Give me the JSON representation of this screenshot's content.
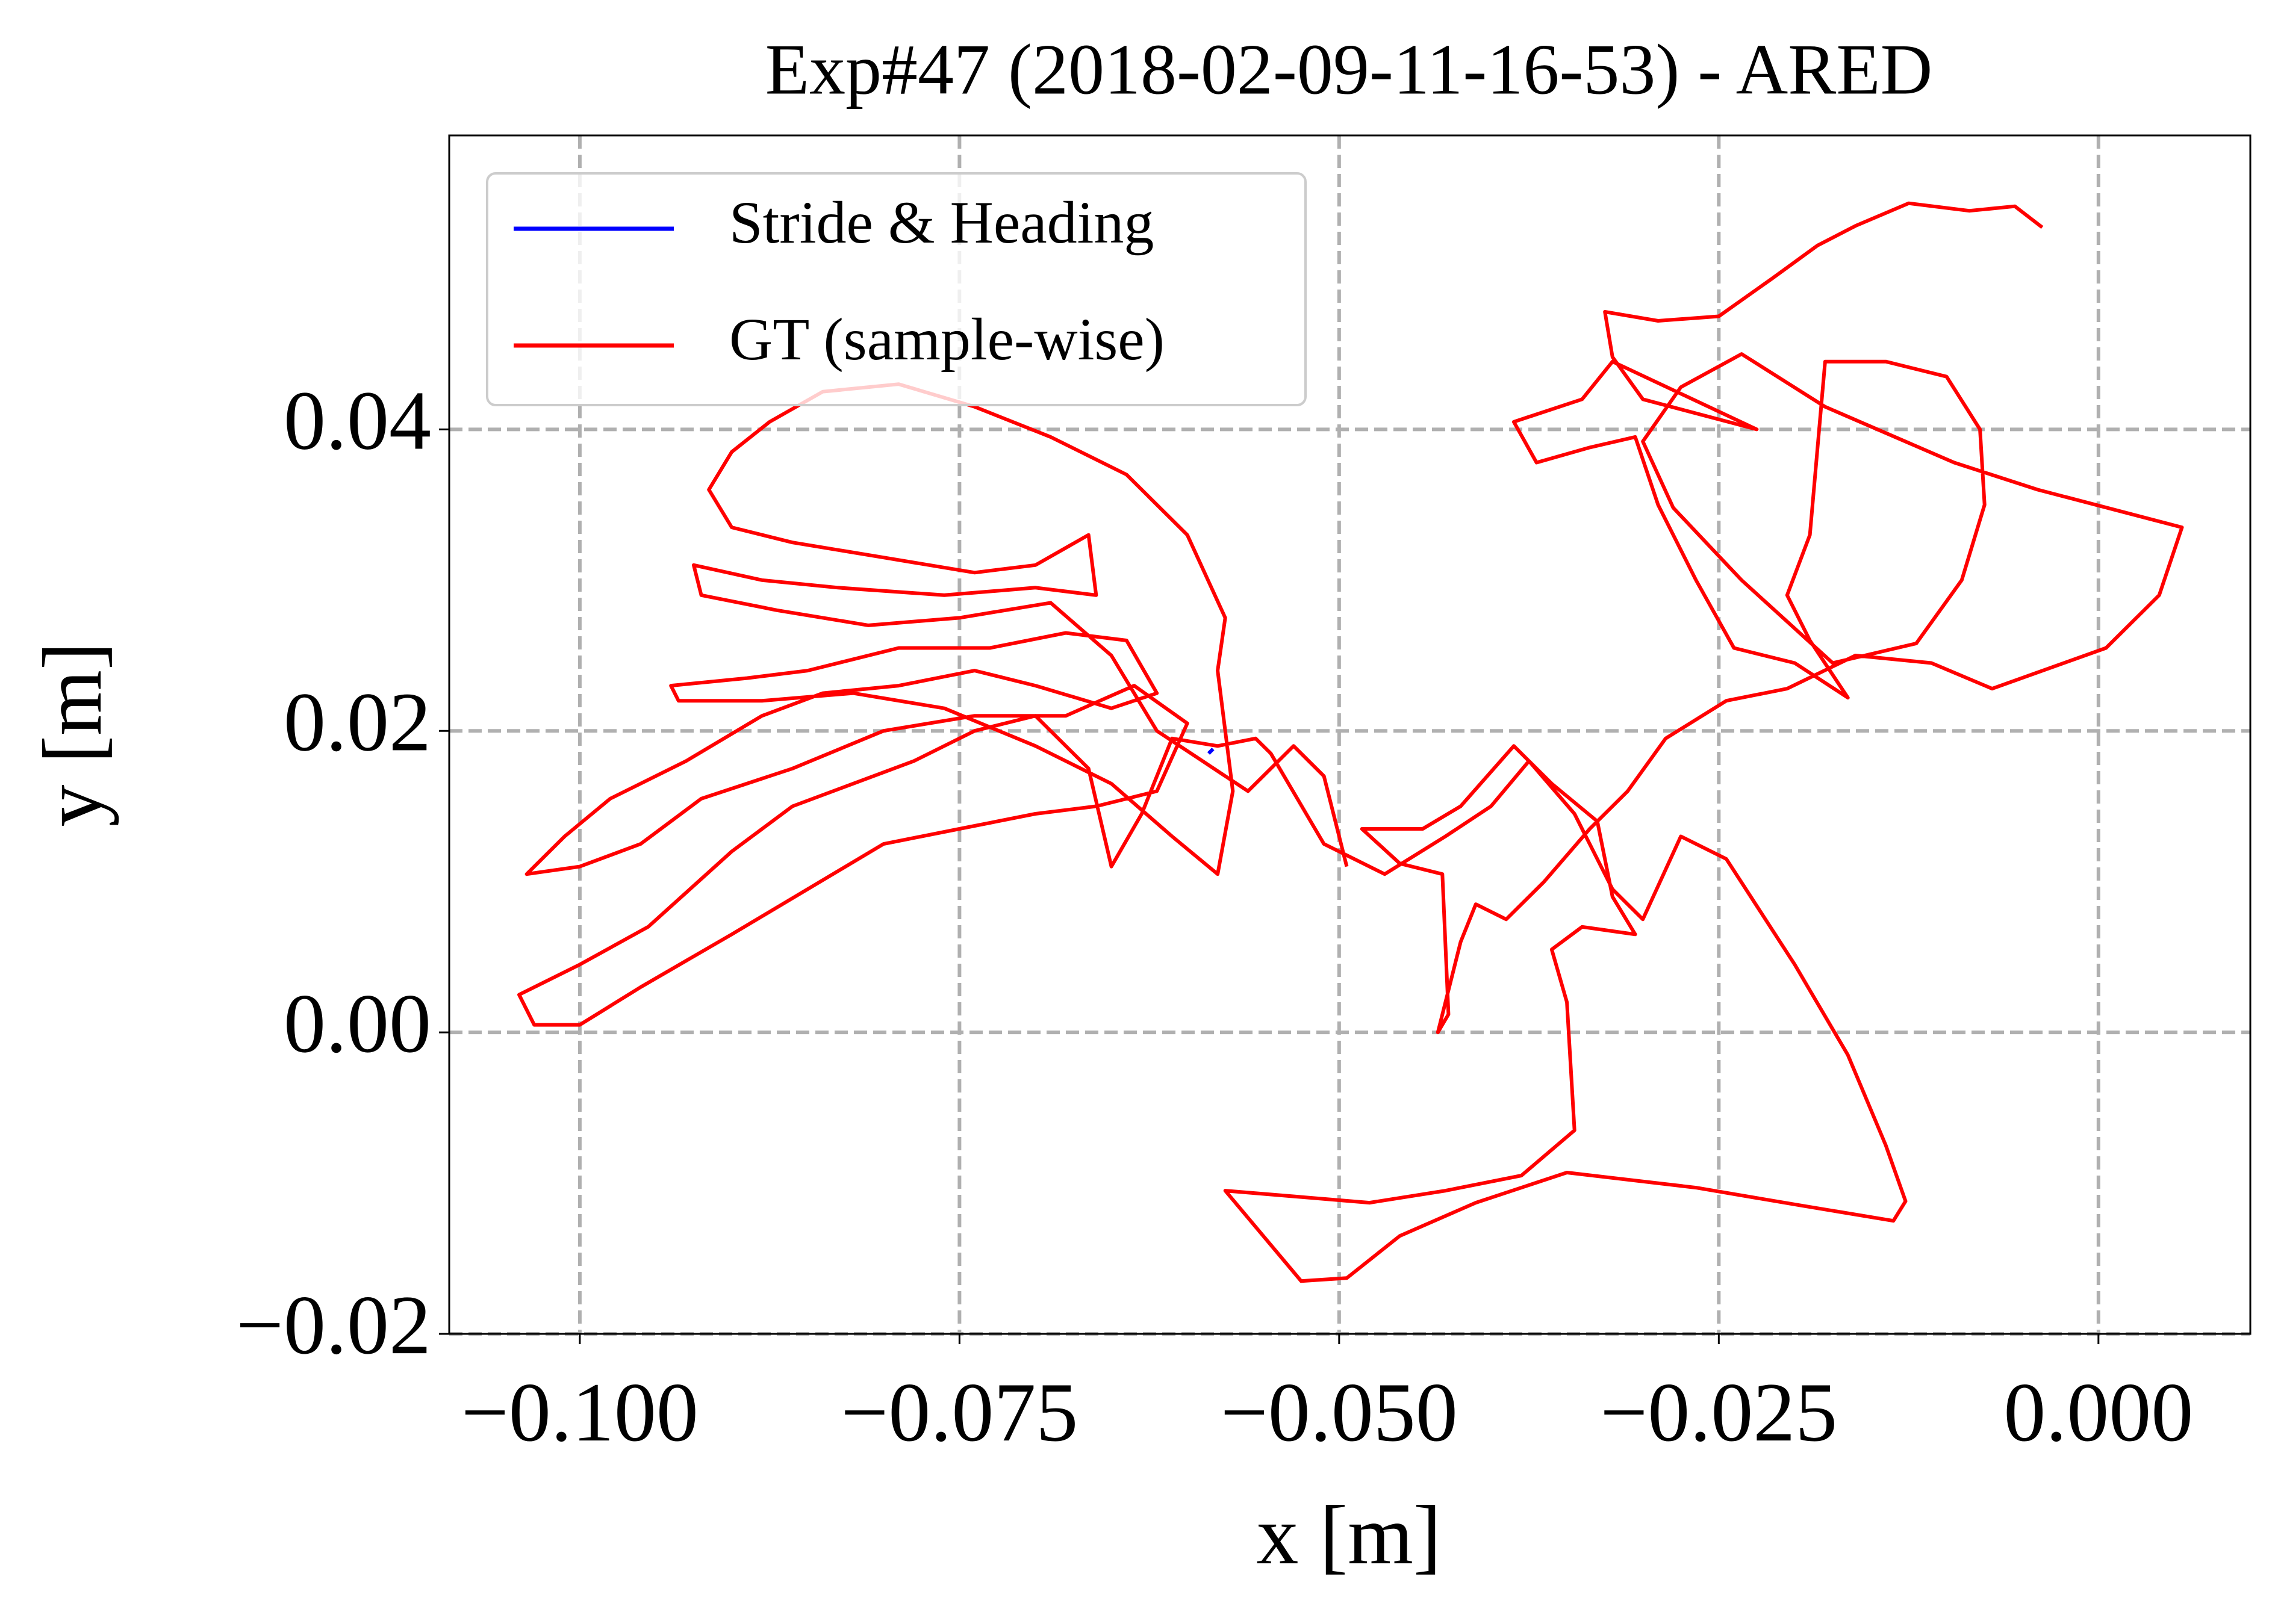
{
  "chart_data": {
    "type": "line",
    "title": "Exp#47 (2018-02-09-11-16-53) - ARED",
    "x_label": "x [m]",
    "y_label": "y [m]",
    "xlim": [
      -0.1086,
      0.01
    ],
    "ylim": [
      -0.02,
      0.0595
    ],
    "xticks": [
      {
        "value": -0.1,
        "label": "−0.100"
      },
      {
        "value": -0.075,
        "label": "−0.075"
      },
      {
        "value": -0.05,
        "label": "−0.050"
      },
      {
        "value": -0.025,
        "label": "−0.025"
      },
      {
        "value": 0,
        "label": "0.000"
      }
    ],
    "yticks": [
      {
        "value": -0.02,
        "label": "−0.02"
      },
      {
        "value": 0,
        "label": "0.00"
      },
      {
        "value": 0.02,
        "label": "0.02"
      },
      {
        "value": 0.04,
        "label": "0.04"
      }
    ],
    "grid": true,
    "legend": "upper left",
    "series": [
      {
        "name": "Stride & Heading",
        "color": "#0000ff",
        "x": [
          -0.0586,
          -0.0583
        ],
        "values": [
          0.0185,
          0.0188
        ]
      },
      {
        "name": "GT (sample-wise)",
        "color": "#ff0000",
        "x": [
          -0.0037,
          -0.0055,
          -0.0085,
          -0.0125,
          -0.016,
          -0.0185,
          -0.0215,
          -0.025,
          -0.029,
          -0.0325,
          -0.032,
          -0.03,
          -0.0225,
          -0.032,
          -0.034,
          -0.0385,
          -0.037,
          -0.0335,
          -0.0305,
          -0.029,
          -0.0265,
          -0.024,
          -0.02,
          -0.0165,
          -0.019,
          -0.0205,
          -0.019,
          -0.018,
          -0.014,
          -0.01,
          -0.0078,
          -0.0075,
          -0.009,
          -0.012,
          -0.0175,
          -0.0235,
          -0.028,
          -0.03,
          -0.0275,
          -0.0235,
          -0.018,
          -0.0095,
          -0.004,
          0.0055,
          0.004,
          0.0005,
          -0.007,
          -0.011,
          -0.016,
          -0.0205,
          -0.0245,
          -0.0285,
          -0.031,
          -0.0335,
          -0.0365,
          -0.039,
          -0.041,
          -0.042,
          -0.0435,
          -0.0428,
          -0.0432,
          -0.046,
          -0.0485,
          -0.0445,
          -0.042,
          -0.0385,
          -0.036,
          -0.033,
          -0.032,
          -0.0305,
          -0.034,
          -0.036,
          -0.035,
          -0.0345,
          -0.038,
          -0.043,
          -0.048,
          -0.0575,
          -0.0525,
          -0.0495,
          -0.046,
          -0.041,
          -0.035,
          -0.0265,
          -0.0195,
          -0.0135,
          -0.0127,
          -0.014,
          -0.0165,
          -0.02,
          -0.0245,
          -0.0275,
          -0.03,
          -0.032,
          -0.0345,
          -0.0375,
          -0.04,
          -0.043,
          -0.047,
          -0.051,
          -0.0545,
          -0.0555,
          -0.058,
          -0.061,
          -0.063,
          -0.065,
          -0.0665,
          -0.07,
          -0.074,
          -0.078,
          -0.082,
          -0.086,
          -0.09,
          -0.0955,
          -0.1,
          -0.104,
          -0.103,
          -0.1,
          -0.096,
          -0.09,
          -0.085,
          -0.08,
          -0.075,
          -0.07,
          -0.066,
          -0.062,
          -0.06,
          -0.0635,
          -0.068,
          -0.074,
          -0.08,
          -0.086,
          -0.092,
          -0.096,
          -0.1,
          -0.1035,
          -0.101,
          -0.098,
          -0.093,
          -0.088,
          -0.084,
          -0.079,
          -0.074,
          -0.07,
          -0.065,
          -0.062,
          -0.064,
          -0.068,
          -0.073,
          -0.079,
          -0.085,
          -0.089,
          -0.094,
          -0.0935,
          -0.088,
          -0.082,
          -0.076,
          -0.07,
          -0.065,
          -0.061,
          -0.058,
          -0.057,
          -0.058,
          -0.0575,
          -0.06,
          -0.064,
          -0.069,
          -0.074,
          -0.079,
          -0.084,
          -0.0875,
          -0.09,
          -0.0915,
          -0.09,
          -0.086,
          -0.08,
          -0.074,
          -0.07,
          -0.0665,
          -0.066,
          -0.07,
          -0.076,
          -0.083,
          -0.088,
          -0.0925,
          -0.092,
          -0.087,
          -0.081,
          -0.075,
          -0.069,
          -0.065,
          -0.062,
          -0.059,
          -0.056,
          -0.053,
          -0.051,
          -0.0495
        ],
        "values": [
          0.0534,
          0.0548,
          0.0545,
          0.055,
          0.0535,
          0.0522,
          0.05,
          0.0475,
          0.0472,
          0.0478,
          0.0448,
          0.042,
          0.04,
          0.0445,
          0.042,
          0.0405,
          0.0378,
          0.0388,
          0.0395,
          0.035,
          0.03,
          0.0255,
          0.0245,
          0.0222,
          0.026,
          0.029,
          0.033,
          0.0445,
          0.0445,
          0.0435,
          0.04,
          0.035,
          0.03,
          0.0258,
          0.0245,
          0.03,
          0.0348,
          0.0392,
          0.0428,
          0.045,
          0.0415,
          0.0378,
          0.036,
          0.0335,
          0.029,
          0.0255,
          0.0228,
          0.0245,
          0.025,
          0.0228,
          0.022,
          0.0195,
          0.016,
          0.0135,
          0.01,
          0.0075,
          0.0085,
          0.006,
          0.0,
          0.0012,
          0.0105,
          0.0112,
          0.0135,
          0.0135,
          0.015,
          0.019,
          0.0165,
          0.014,
          0.009,
          0.0065,
          0.007,
          0.0055,
          0.002,
          -0.0065,
          -0.0095,
          -0.0105,
          -0.0113,
          -0.0105,
          -0.0165,
          -0.0163,
          -0.0135,
          -0.0113,
          -0.0093,
          -0.0103,
          -0.0115,
          -0.0125,
          -0.0112,
          -0.0075,
          -0.0015,
          0.0045,
          0.0115,
          0.013,
          0.0075,
          0.0095,
          0.0145,
          0.018,
          0.015,
          0.013,
          0.0105,
          0.0125,
          0.0185,
          0.0195,
          0.019,
          0.0195,
          0.0145,
          0.011,
          0.0175,
          0.021,
          0.02,
          0.018,
          0.0165,
          0.015,
          0.012,
          0.007,
          0.0045,
          0.0025,
          0.0005,
          0.0005,
          0.003,
          0.0065,
          0.0095,
          0.0125,
          0.0135,
          0.0145,
          0.015,
          0.016,
          0.0205,
          0.023,
          0.021,
          0.021,
          0.02,
          0.0175,
          0.0155,
          0.0125,
          0.011,
          0.0105,
          0.013,
          0.0155,
          0.018,
          0.021,
          0.0225,
          0.023,
          0.024,
          0.023,
          0.0215,
          0.0225,
          0.026,
          0.0265,
          0.0255,
          0.0255,
          0.024,
          0.0235,
          0.023,
          0.022,
          0.022,
          0.0225,
          0.0215,
          0.019,
          0.0165,
          0.013,
          0.0105,
          0.016,
          0.024,
          0.0275,
          0.033,
          0.037,
          0.0395,
          0.0415,
          0.043,
          0.0425,
          0.0405,
          0.0385,
          0.036,
          0.0335,
          0.0325,
          0.0315,
          0.0305,
          0.031,
          0.033,
          0.029,
          0.0295,
          0.029,
          0.0295,
          0.03,
          0.031,
          0.029,
          0.028,
          0.027,
          0.0275,
          0.0285,
          0.025,
          0.02,
          0.018,
          0.016,
          0.019,
          0.017,
          0.011
        ]
      }
    ]
  }
}
